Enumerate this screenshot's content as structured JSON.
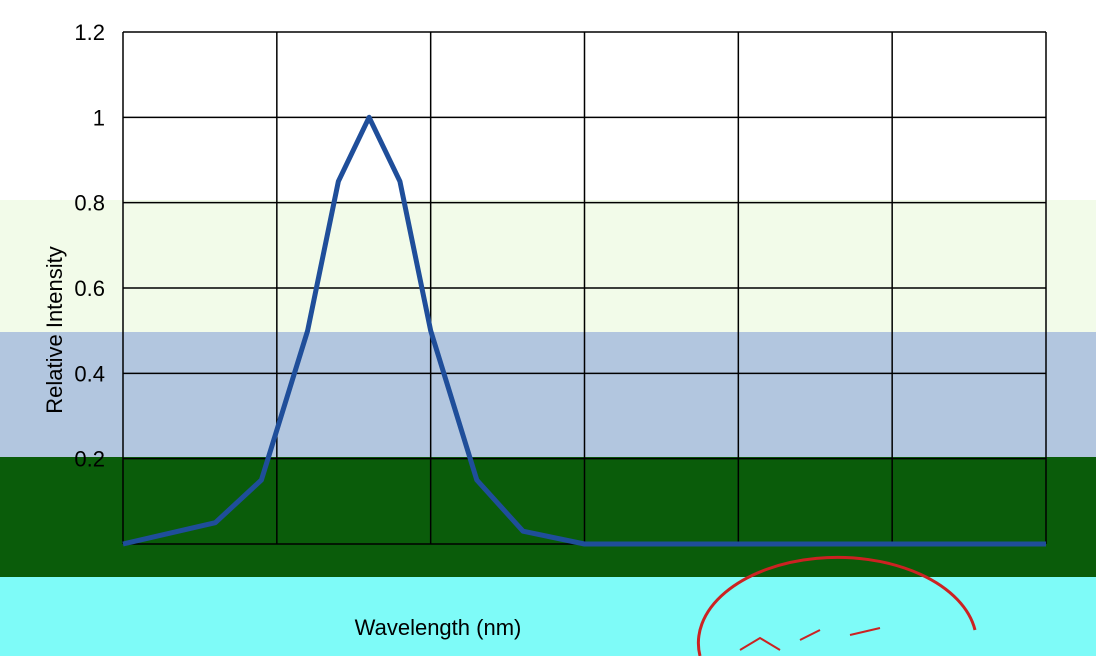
{
  "chart_data": {
    "type": "line",
    "title": "",
    "xlabel": "Wavelength (nm)",
    "ylabel": "Relative Intensity",
    "ylim": [
      0,
      1.2
    ],
    "yticks": [
      0,
      0.2,
      0.4,
      0.6,
      0.8,
      1,
      1.2
    ],
    "ytick_labels": [
      "",
      "0.2",
      "0.4",
      "0.6",
      "0.8",
      "1",
      "1.2"
    ],
    "x_categories": 6,
    "grid": true,
    "series": [
      {
        "color": "#1f4e9a",
        "x": [
          0.0,
          0.6,
          0.9,
          1.2,
          1.4,
          1.6,
          1.8,
          2.0,
          2.3,
          2.6,
          3.0,
          3.5,
          4.0,
          5.0,
          6.0
        ],
        "y": [
          0.0,
          0.05,
          0.15,
          0.5,
          0.85,
          1.0,
          0.85,
          0.5,
          0.15,
          0.03,
          0.0,
          0.0,
          0.0,
          0.0,
          0.0
        ]
      }
    ],
    "colors": {
      "band_light_green": "#f2fbe9",
      "band_steel_blue": "#b2c6df",
      "band_dark_green": "#0a5c0a",
      "band_cyan": "#7efbf8",
      "seal_red": "#cc2222"
    }
  }
}
